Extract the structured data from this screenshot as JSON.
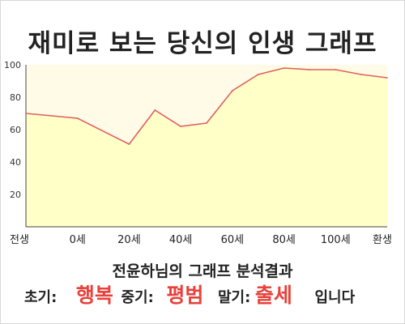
{
  "title": "재미로 보는 당신의 인생 그래프",
  "summary": "전윤하님의 그래프 분석결과",
  "result": {
    "early_label": "초기:",
    "early_value": "행복",
    "mid_label": "중기:",
    "mid_value": "평범",
    "late_label": "말기:",
    "late_value": "출세",
    "ending": "입니다"
  },
  "colors": {
    "line": "#e06060",
    "fill": "#ffffc8",
    "plot_bg": "#fffbe6",
    "accent_text": "#e8413b"
  },
  "chart_data": {
    "type": "area",
    "x_tick_labels": [
      "전생",
      "0세",
      "20세",
      "40세",
      "60세",
      "80세",
      "100세",
      "환생"
    ],
    "x_tick_values": [
      -20,
      0,
      20,
      40,
      60,
      80,
      100,
      120
    ],
    "y_ticks": [
      20,
      40,
      60,
      80,
      100
    ],
    "ylim": [
      0,
      100
    ],
    "xlim": [
      -20,
      120
    ],
    "grid": false,
    "legend": "none",
    "x": [
      -20,
      0,
      20,
      30,
      40,
      50,
      60,
      70,
      80,
      90,
      100,
      110,
      120
    ],
    "y": [
      70,
      67,
      51,
      72,
      62,
      64,
      84,
      94,
      98,
      97,
      97,
      94,
      92
    ]
  }
}
